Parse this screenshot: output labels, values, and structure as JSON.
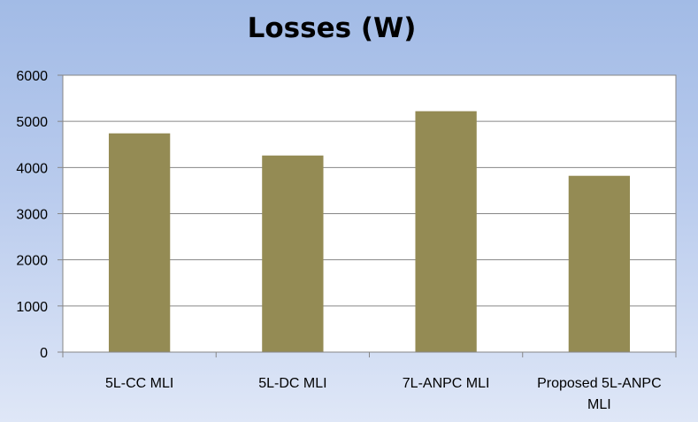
{
  "chart_data": {
    "type": "bar",
    "title": "Losses (W)",
    "xlabel": "",
    "ylabel": "",
    "categories": [
      "5L-CC MLI",
      "5L-DC MLI",
      "7L-ANPC MLI",
      "Proposed 5L-ANPC MLI"
    ],
    "series": [
      {
        "values": [
          4740,
          4260,
          5220,
          3820
        ],
        "color": "#948b54"
      }
    ],
    "ylim": [
      0,
      6000
    ],
    "yticks": [
      "0",
      "1000",
      "2000",
      "3000",
      "4000",
      "5000",
      "6000"
    ],
    "grid": true,
    "legend": "none",
    "plot_background": "#ffffff"
  }
}
